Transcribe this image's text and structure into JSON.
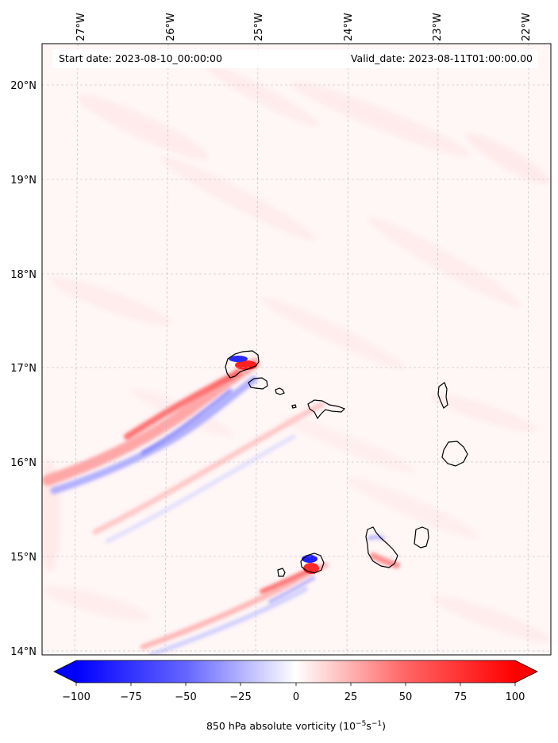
{
  "header": {
    "start_date": "Start date: 2023-08-10_00:00:00",
    "valid_date": "Valid_date: 2023-08-11T01:00:00.00"
  },
  "map": {
    "lon_labels": [
      "27°W",
      "26°W",
      "25°W",
      "24°W",
      "23°W",
      "22°W"
    ],
    "lat_labels": [
      "20°N",
      "19°N",
      "18°N",
      "17°N",
      "16°N",
      "15°N",
      "14°N"
    ],
    "extent": {
      "lon_min": -27.35,
      "lon_max": -21.95,
      "lat_min": 13.95,
      "lat_max": 20.45
    }
  },
  "colorbar": {
    "ticks": [
      "−100",
      "−75",
      "−50",
      "−25",
      "0",
      "25",
      "50",
      "75",
      "100"
    ],
    "range": [
      -100,
      100
    ],
    "label_main": "850 hPa absolute vorticity (10",
    "label_exp1": "−5",
    "label_mid": "s",
    "label_exp2": "−1",
    "label_end": ")",
    "colors": {
      "min": "#0000ff",
      "mid": "#ffffff",
      "max": "#ff0000"
    }
  }
}
